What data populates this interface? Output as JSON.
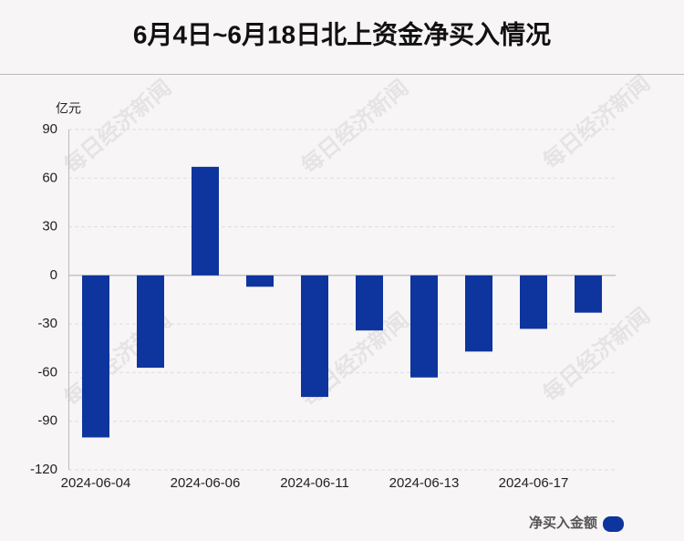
{
  "chart_data": {
    "type": "bar",
    "title": "6月4日~6月18日北上资金净买入情况",
    "y_unit": "亿元",
    "categories": [
      "2024-06-04",
      null,
      "2024-06-06",
      null,
      "2024-06-11",
      null,
      "2024-06-13",
      null,
      "2024-06-17",
      null
    ],
    "series": [
      {
        "name": "净买入金额",
        "color": "#0e349e",
        "values": [
          -100,
          -57,
          67,
          -7,
          -75,
          -34,
          -63,
          -47,
          -33,
          -23
        ]
      }
    ],
    "ylim": [
      -120,
      90
    ],
    "yticks": [
      90,
      60,
      30,
      0,
      -30,
      -60,
      -90,
      -120
    ],
    "grid": true,
    "watermark": "每日经济新闻"
  }
}
